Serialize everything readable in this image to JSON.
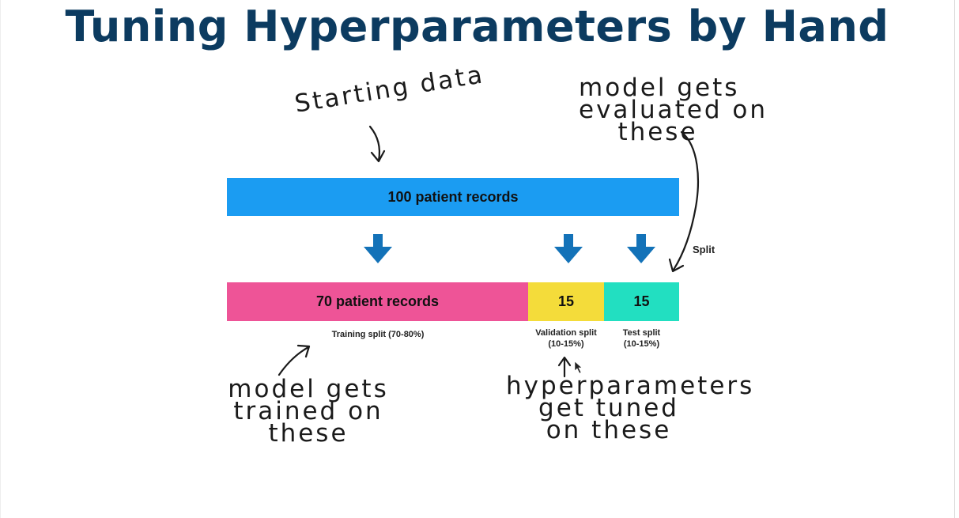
{
  "title": "Tuning Hyperparameters by Hand",
  "bars": {
    "total": {
      "label": "100 patient records",
      "color": "#1b9cf2"
    },
    "training": {
      "label": "70 patient records",
      "color": "#ee5497"
    },
    "validation": {
      "label": "15",
      "color": "#f4dc3a"
    },
    "test": {
      "label": "15",
      "color": "#22dfc1"
    }
  },
  "captions": {
    "training": "Training split (70-80%)",
    "validation": [
      "Validation split",
      "(10-15%)"
    ],
    "test": [
      "Test split",
      "(10-15%)"
    ]
  },
  "split_label": "Split",
  "arrow_color": "#1372b8",
  "annotations": {
    "starting": [
      "Starting data"
    ],
    "evaluated": [
      "model gets",
      "evaluated on",
      "these"
    ],
    "trained": [
      "model gets",
      "trained on",
      "these"
    ],
    "tuned": [
      "hyperparameters",
      "get tuned",
      "on these"
    ]
  }
}
